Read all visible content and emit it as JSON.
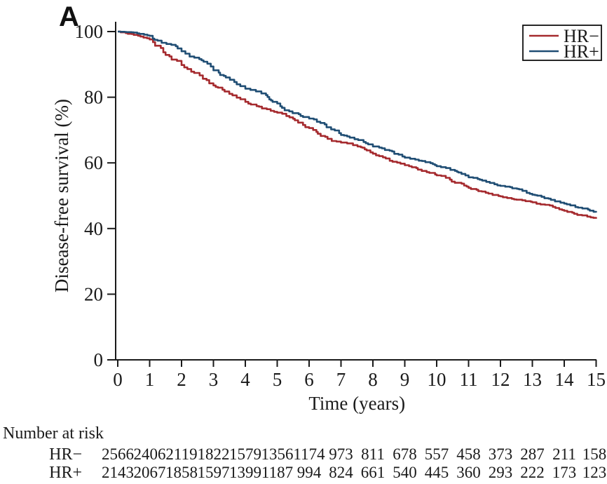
{
  "panel_label": "A",
  "colors": {
    "hr_minus": "#A52A2E",
    "hr_plus": "#204E74",
    "axis": "#1a1a1a",
    "background": "#ffffff"
  },
  "legend": {
    "entries": [
      {
        "label": "HR−",
        "color_key": "hr_minus"
      },
      {
        "label": "HR+",
        "color_key": "hr_plus"
      }
    ]
  },
  "chart_data": {
    "type": "line",
    "subtype": "kaplan-meier-step",
    "title": "",
    "xlabel": "Time (years)",
    "ylabel": "Disease-free survival (%)",
    "xlim": [
      0,
      15
    ],
    "ylim": [
      0,
      100
    ],
    "x_ticks": [
      0,
      1,
      2,
      3,
      4,
      5,
      6,
      7,
      8,
      9,
      10,
      11,
      12,
      13,
      14,
      15
    ],
    "y_ticks": [
      0,
      20,
      40,
      60,
      80,
      100
    ],
    "grid": false,
    "legend_position": "top-right",
    "x": [
      0,
      0.5,
      1,
      2,
      3,
      4,
      5,
      6,
      7,
      8,
      9,
      10,
      11,
      12,
      13,
      14,
      15
    ],
    "series": [
      {
        "name": "HR−",
        "color_key": "hr_minus",
        "values": [
          100,
          99.0,
          97.6,
          89.8,
          83.6,
          78.6,
          75.3,
          70.6,
          66.2,
          62.8,
          59.3,
          56.2,
          52.4,
          49.8,
          48.0,
          45.4,
          43.0
        ]
      },
      {
        "name": "HR+",
        "color_key": "hr_plus",
        "values": [
          100,
          99.7,
          98.7,
          94.0,
          88.2,
          82.6,
          78.1,
          73.5,
          68.5,
          65.0,
          61.6,
          59.0,
          55.6,
          53.0,
          50.3,
          47.6,
          44.9
        ]
      }
    ]
  },
  "risk_table": {
    "title": "Number at risk",
    "time_points": [
      0,
      1,
      2,
      3,
      4,
      5,
      6,
      7,
      8,
      9,
      10,
      11,
      12,
      13,
      14,
      15
    ],
    "rows": [
      {
        "label": "HR−",
        "counts": [
          2566,
          2406,
          2119,
          1822,
          1579,
          1356,
          1174,
          973,
          811,
          678,
          557,
          458,
          373,
          287,
          211,
          158
        ]
      },
      {
        "label": "HR+",
        "counts": [
          2143,
          2067,
          1858,
          1597,
          1399,
          1187,
          994,
          824,
          661,
          540,
          445,
          360,
          293,
          222,
          173,
          123
        ]
      }
    ]
  }
}
